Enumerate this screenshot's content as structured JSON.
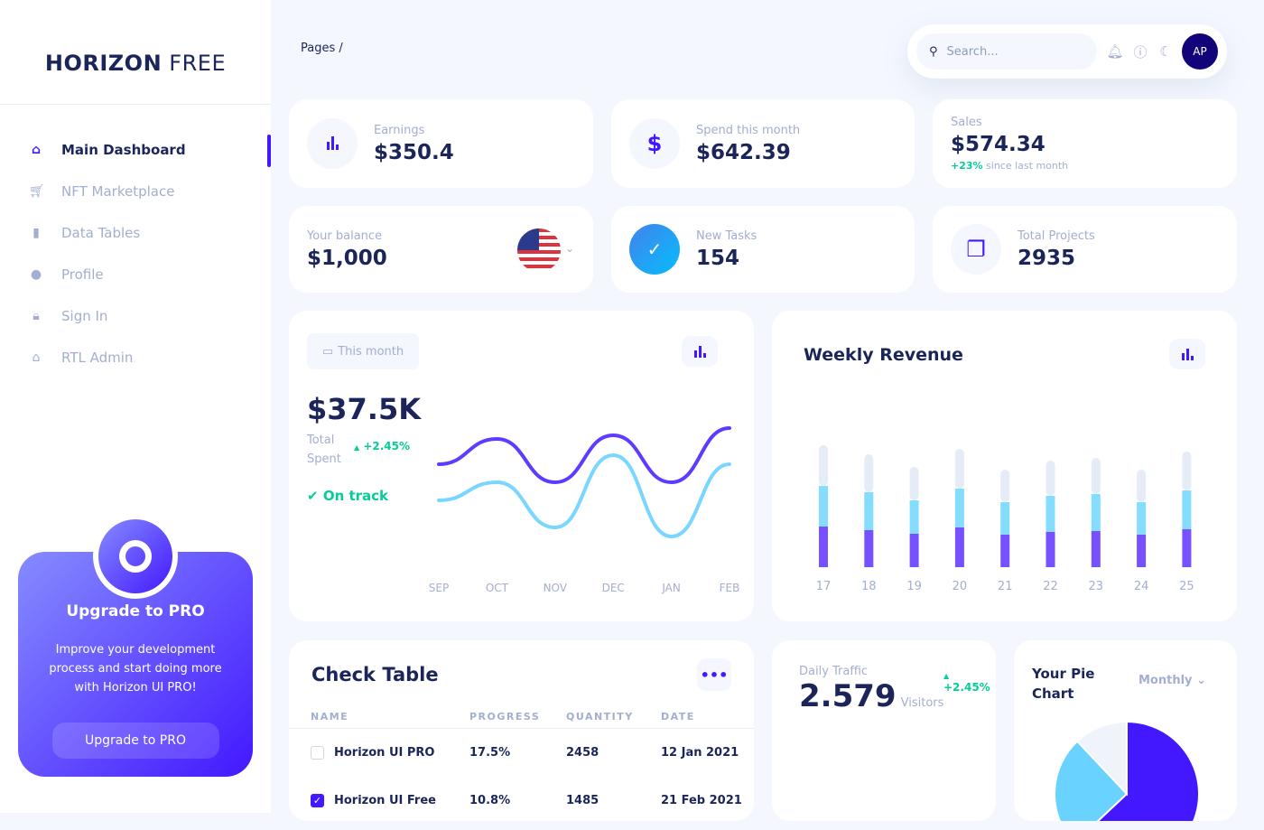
{
  "sidebar": {
    "logo_bold": "HORIZON",
    "logo_light": " FREE",
    "items": [
      {
        "label": "Main Dashboard",
        "icon": "home-icon",
        "active": true
      },
      {
        "label": "NFT Marketplace",
        "icon": "cart-icon"
      },
      {
        "label": "Data Tables",
        "icon": "bar-chart-icon"
      },
      {
        "label": "Profile",
        "icon": "person-icon"
      },
      {
        "label": "Sign In",
        "icon": "lock-icon"
      },
      {
        "label": "RTL Admin",
        "icon": "home-icon"
      }
    ],
    "promo": {
      "title": "Upgrade to PRO",
      "text": "Improve your development process and start doing more with Horizon UI PRO!",
      "button": "Upgrade to PRO"
    }
  },
  "header": {
    "breadcrumb": "Pages  /",
    "search_placeholder": "Search...",
    "avatar": "AP"
  },
  "stats": {
    "earnings": {
      "label": "Earnings",
      "value": "$350.4"
    },
    "spend": {
      "label": "Spend this month",
      "value": "$642.39"
    },
    "sales": {
      "label": "Sales",
      "value": "$574.34",
      "change": "+23%",
      "change_text": "since last month"
    },
    "balance": {
      "label": "Your balance",
      "value": "$1,000"
    },
    "tasks": {
      "label": "New Tasks",
      "value": "154"
    },
    "projects": {
      "label": "Total Projects",
      "value": "2935"
    }
  },
  "total_spent": {
    "period": "This month",
    "value": "$37.5K",
    "label1": "Total",
    "label2": "Spent",
    "change": "+2.45%",
    "status": "On track"
  },
  "weekly_revenue": {
    "title": "Weekly Revenue"
  },
  "chart_data": [
    {
      "type": "line",
      "x": [
        "SEP",
        "OCT",
        "NOV",
        "DEC",
        "JAN",
        "FEB"
      ],
      "series": [
        {
          "color": "#4318ff",
          "values": [
            50,
            64,
            40,
            66,
            40,
            70
          ]
        },
        {
          "color": "#6ad2ff",
          "values": [
            30,
            40,
            15,
            55,
            10,
            50
          ]
        }
      ],
      "grid": false
    },
    {
      "type": "bar",
      "stacked": true,
      "categories": [
        "17",
        "18",
        "19",
        "20",
        "21",
        "22",
        "23",
        "24",
        "25"
      ],
      "series": [
        {
          "color": "#7551ff",
          "values": [
            45,
            41,
            37,
            44,
            36,
            39,
            40,
            36,
            42
          ]
        },
        {
          "color": "#84dcfe",
          "values": [
            45,
            42,
            37,
            43,
            36,
            40,
            41,
            36,
            43
          ]
        },
        {
          "color": "#e5ecf8",
          "values": [
            45,
            42,
            37,
            44,
            36,
            39,
            40,
            36,
            43
          ]
        }
      ],
      "grid": false
    },
    {
      "type": "pie",
      "values": [
        63,
        25,
        12
      ],
      "colors": [
        "#4318ff",
        "#6ad2ff",
        "#eff4fb"
      ]
    }
  ],
  "check_table": {
    "title": "Check Table",
    "columns": [
      "NAME",
      "PROGRESS",
      "QUANTITY",
      "DATE"
    ],
    "rows": [
      {
        "name": "Horizon UI PRO",
        "progress": "17.5%",
        "quantity": "2458",
        "date": "12 Jan 2021",
        "checked": false
      },
      {
        "name": "Horizon UI Free",
        "progress": "10.8%",
        "quantity": "1485",
        "date": "21 Feb 2021",
        "checked": true
      }
    ]
  },
  "daily_traffic": {
    "label": "Daily Traffic",
    "value": "2.579",
    "unit": "Visitors",
    "change": "+2.45%"
  },
  "pie": {
    "title1": "Your Pie",
    "title2": "Chart",
    "period": "Monthly"
  }
}
